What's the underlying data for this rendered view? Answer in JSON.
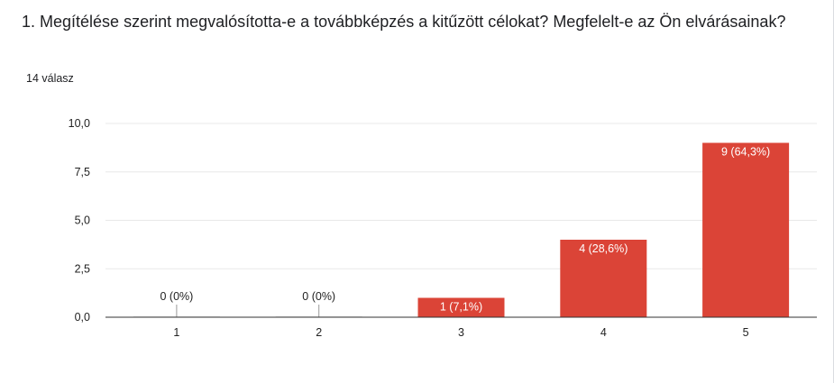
{
  "question": {
    "title": "1. Megítélése szerint megvalósította-e a továbbképzés a kitűzött célokat? Megfelelt-e az Ön elvárásainak?"
  },
  "summary": {
    "responses": "14 válasz"
  },
  "colors": {
    "bar": "#db4437",
    "grid": "#e8e8e8",
    "axis": "#333333",
    "text": "#222222",
    "card_border": "#dadce0"
  },
  "chart_data": {
    "type": "bar",
    "categories": [
      "1",
      "2",
      "3",
      "4",
      "5"
    ],
    "values": [
      0,
      0,
      1,
      4,
      9
    ],
    "data_labels": [
      "0 (0%)",
      "0 (0%)",
      "1 (7,1%)",
      "4 (28,6%)",
      "9 (64,3%)"
    ],
    "y_ticks": [
      0,
      2.5,
      5,
      7.5,
      10
    ],
    "y_tick_labels": [
      "0,0",
      "2,5",
      "5,0",
      "7,5",
      "10,0"
    ],
    "ylim": [
      0,
      10
    ],
    "grid": true
  }
}
